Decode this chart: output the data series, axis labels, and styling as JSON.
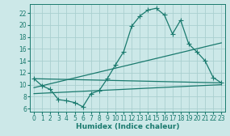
{
  "xlabel": "Humidex (Indice chaleur)",
  "bg_color": "#cce8e8",
  "grid_color": "#aacfcf",
  "line_color": "#1a7a6e",
  "xlim": [
    -0.5,
    23.5
  ],
  "ylim": [
    5.5,
    23.5
  ],
  "xticks": [
    0,
    1,
    2,
    3,
    4,
    5,
    6,
    7,
    8,
    9,
    10,
    11,
    12,
    13,
    14,
    15,
    16,
    17,
    18,
    19,
    20,
    21,
    22,
    23
  ],
  "yticks": [
    6,
    8,
    10,
    12,
    14,
    16,
    18,
    20,
    22
  ],
  "line1_x": [
    0,
    1,
    2,
    3,
    4,
    5,
    6,
    7,
    8,
    9,
    10,
    11,
    12,
    13,
    14,
    15,
    16,
    17,
    18,
    19,
    20,
    21,
    22,
    23
  ],
  "line1_y": [
    11.0,
    9.8,
    9.2,
    7.5,
    7.3,
    7.0,
    6.3,
    8.5,
    9.0,
    11.0,
    13.3,
    15.5,
    19.8,
    21.5,
    22.5,
    22.8,
    21.7,
    18.5,
    20.8,
    16.8,
    15.5,
    14.0,
    11.2,
    10.3
  ],
  "line2_x": [
    0,
    23
  ],
  "line2_y": [
    11.0,
    10.3
  ],
  "line3_x": [
    0,
    23
  ],
  "line3_y": [
    9.5,
    17.0
  ],
  "line4_x": [
    0,
    23
  ],
  "line4_y": [
    8.5,
    10.0
  ],
  "markersize": 2.5,
  "linewidth": 0.9,
  "tick_fontsize": 5.5,
  "xlabel_fontsize": 6.5
}
